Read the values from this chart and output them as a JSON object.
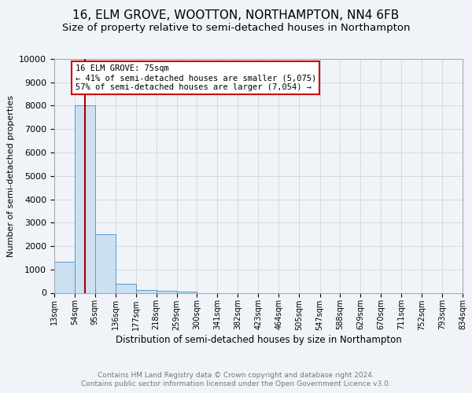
{
  "title": "16, ELM GROVE, WOOTTON, NORTHAMPTON, NN4 6FB",
  "subtitle": "Size of property relative to semi-detached houses in Northampton",
  "xlabel": "Distribution of semi-detached houses by size in Northampton",
  "ylabel": "Number of semi-detached properties",
  "footer_line1": "Contains HM Land Registry data © Crown copyright and database right 2024.",
  "footer_line2": "Contains public sector information licensed under the Open Government Licence v3.0.",
  "bins": [
    13,
    54,
    95,
    136,
    177,
    218,
    259,
    300,
    341,
    382,
    423,
    464,
    505,
    547,
    588,
    629,
    670,
    711,
    752,
    793,
    834
  ],
  "bin_labels": [
    "13sqm",
    "54sqm",
    "95sqm",
    "136sqm",
    "177sqm",
    "218sqm",
    "259sqm",
    "300sqm",
    "341sqm",
    "382sqm",
    "423sqm",
    "464sqm",
    "505sqm",
    "547sqm",
    "588sqm",
    "629sqm",
    "670sqm",
    "711sqm",
    "752sqm",
    "793sqm",
    "834sqm"
  ],
  "values": [
    1320,
    8000,
    2520,
    380,
    120,
    80,
    60,
    0,
    0,
    0,
    0,
    0,
    0,
    0,
    0,
    0,
    0,
    0,
    0,
    0
  ],
  "bar_color": "#cce0f0",
  "bar_edge_color": "#5599cc",
  "property_line_x": 75,
  "property_line_color": "#aa0000",
  "annotation_line1": "16 ELM GROVE: 75sqm",
  "annotation_line2": "← 41% of semi-detached houses are smaller (5,075)",
  "annotation_line3": "57% of semi-detached houses are larger (7,054) →",
  "annotation_box_color": "#ffffff",
  "annotation_box_edge": "#cc0000",
  "ylim": [
    0,
    10000
  ],
  "yticks": [
    0,
    1000,
    2000,
    3000,
    4000,
    5000,
    6000,
    7000,
    8000,
    9000,
    10000
  ],
  "background_color": "#f0f4f8",
  "grid_color": "#c8d0d8",
  "title_fontsize": 11,
  "subtitle_fontsize": 9.5
}
